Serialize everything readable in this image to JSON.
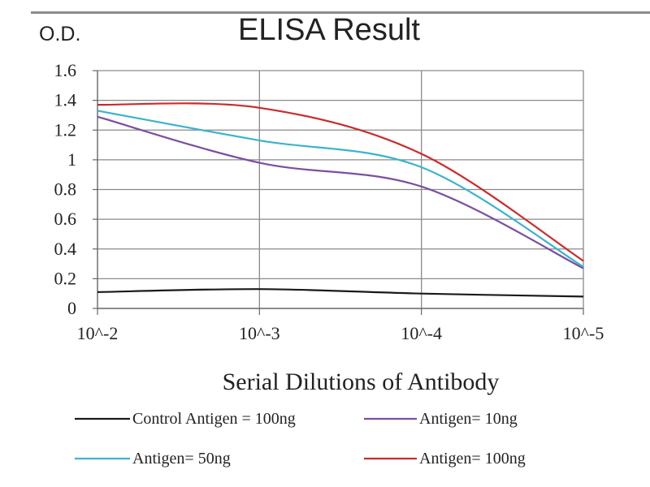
{
  "chart_data": {
    "type": "line",
    "title": "ELISA Result",
    "ylabel": "O.D.",
    "xlabel": "Serial Dilutions of Antibody",
    "categories": [
      "10^-2",
      "10^-3",
      "10^-4",
      "10^-5"
    ],
    "ylim": [
      0,
      1.6
    ],
    "yticks": [
      0,
      0.2,
      0.4,
      0.6,
      0.8,
      1,
      1.2,
      1.4,
      1.6
    ],
    "ytick_labels": [
      "0",
      "0.2",
      "0.4",
      "0.6",
      "0.8",
      "1",
      "1.2",
      "1.4",
      "1.6"
    ],
    "grid": true,
    "legend_position": "bottom",
    "series": [
      {
        "name": "Control Antigen = 100ng",
        "color": "#1a1a1a",
        "values": [
          0.11,
          0.13,
          0.1,
          0.08
        ]
      },
      {
        "name": "Antigen= 10ng",
        "color": "#7a4fa0",
        "values": [
          1.29,
          0.98,
          0.82,
          0.27
        ]
      },
      {
        "name": "Antigen= 50ng",
        "color": "#3ab4cc",
        "values": [
          1.33,
          1.13,
          0.95,
          0.28
        ]
      },
      {
        "name": "Antigen= 100ng",
        "color": "#cc2a2a",
        "values": [
          1.37,
          1.35,
          1.04,
          0.32
        ]
      }
    ]
  }
}
